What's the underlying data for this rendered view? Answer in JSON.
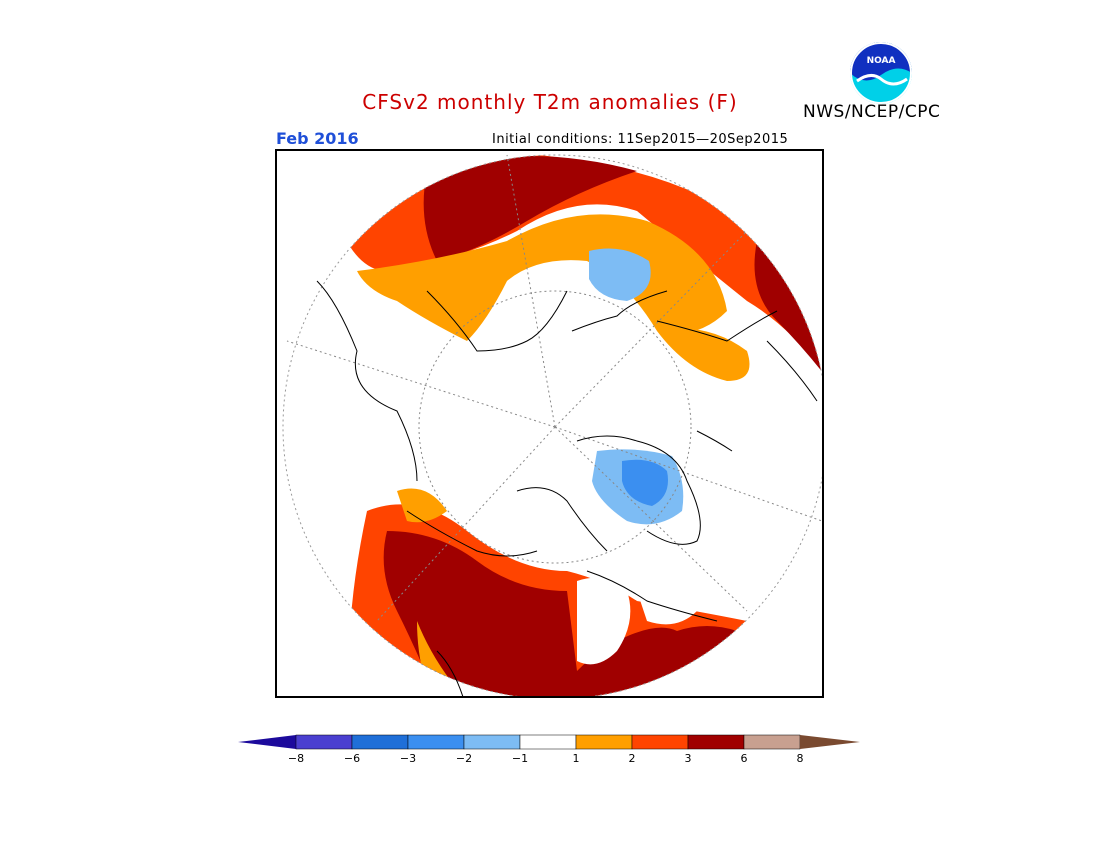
{
  "header": {
    "title": "CFSv2 monthly T2m anomalies (F)",
    "agency": "NWS/NCEP/CPC",
    "month": "Feb 2016",
    "initial_conditions": "Initial conditions: 11Sep2015—20Sep2015"
  },
  "colors": {
    "title": "#cc0000",
    "month": "#1f4fd8",
    "bins": [
      "#1c0a9c",
      "#4a3fd0",
      "#1f6fd8",
      "#3b8ff0",
      "#7dbcf4",
      "#ffffff",
      "#ff9f00",
      "#ff4400",
      "#a00000",
      "#c8a090",
      "#7a4a30"
    ]
  },
  "legend": {
    "labels": [
      "−8",
      "−6",
      "−3",
      "−2",
      "−1",
      "1",
      "2",
      "3",
      "6",
      "8"
    ]
  },
  "logo": {
    "icon": "noaa-logo-icon"
  }
}
